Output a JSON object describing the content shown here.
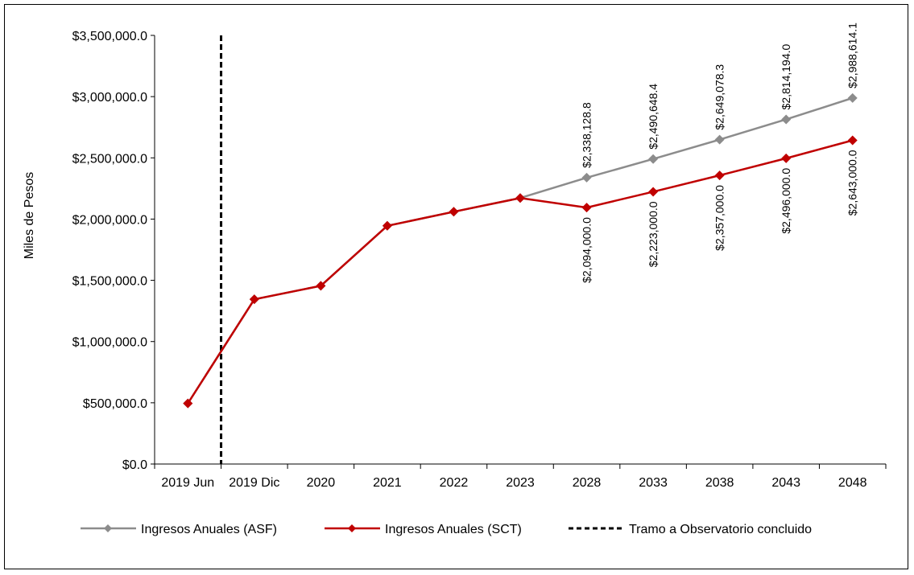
{
  "chart_data": {
    "type": "line",
    "title": "",
    "xlabel": "",
    "ylabel": "Miles de Pesos",
    "ylim": [
      0,
      3500000
    ],
    "y_ticks": [
      "$0.0",
      "$500,000.0",
      "$1,000,000.0",
      "$1,500,000.0",
      "$2,000,000.0",
      "$2,500,000.0",
      "$3,000,000.0",
      "$3,500,000.0"
    ],
    "categories": [
      "2019 Jun",
      "2019 Dic",
      "2020",
      "2021",
      "2022",
      "2023",
      "2028",
      "2033",
      "2038",
      "2043",
      "2048"
    ],
    "grid": false,
    "legend_position": "bottom",
    "series": [
      {
        "name": "Ingresos Anuales (ASF)",
        "color": "#8c8c8c",
        "marker": "diamond",
        "values": [
          495000,
          1345000,
          1455000,
          1945000,
          2060000,
          2172000,
          2338128.8,
          2490648.4,
          2649078.3,
          2814194.0,
          2988614.1
        ],
        "labels": [
          "",
          "",
          "",
          "",
          "",
          "",
          "$2,338,128.8",
          "$2,490,648.4",
          "$2,649,078.3",
          "$2,814,194.0",
          "$2,988,614.1"
        ]
      },
      {
        "name": "Ingresos Anuales (SCT)",
        "color": "#c00000",
        "marker": "diamond",
        "values": [
          495000,
          1345000,
          1455000,
          1945000,
          2060000,
          2172000,
          2094000.0,
          2223000.0,
          2357000.0,
          2496000.0,
          2643000.0
        ],
        "labels": [
          "",
          "",
          "",
          "",
          "",
          "",
          "$2,094,000.0",
          "$2,223,000.0",
          "$2,357,000.0",
          "$2,496,000.0",
          "$2,643,000.0"
        ]
      }
    ],
    "reference_line": {
      "name": "Tramo a Observatorio concluido",
      "color": "#000000",
      "style": "dashed",
      "category": "2019 Jun"
    }
  }
}
